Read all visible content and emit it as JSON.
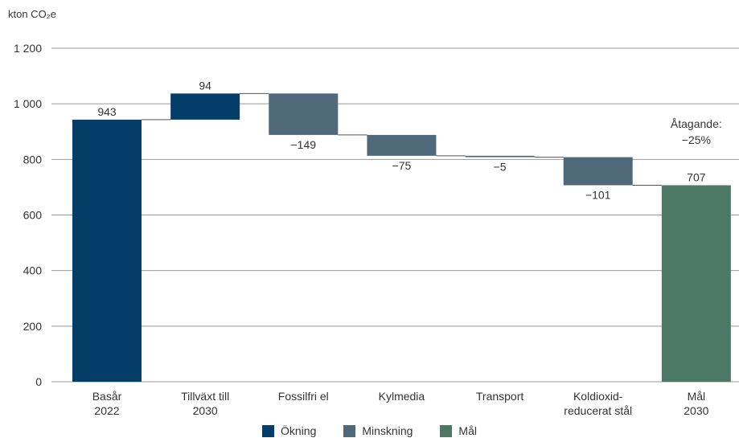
{
  "chart_data": {
    "type": "bar",
    "subtype": "waterfall",
    "unit_label": "kton CO₂e",
    "ylim": [
      0,
      1200
    ],
    "yticks": [
      0,
      200,
      400,
      600,
      800,
      1000,
      1200
    ],
    "ytick_labels": [
      "0",
      "200",
      "400",
      "600",
      "800",
      "1 000",
      "1 200"
    ],
    "grid": true,
    "categories": [
      [
        "Basår",
        "2022"
      ],
      [
        "Tillväxt till",
        "2030"
      ],
      [
        "Fossilfri el"
      ],
      [
        "Kylmedia"
      ],
      [
        "Transport"
      ],
      [
        "Koldioxid-",
        "reducerat stål"
      ],
      [
        "Mål",
        "2030"
      ]
    ],
    "bars": [
      {
        "kind": "base",
        "start": 0,
        "end": 943,
        "label": "943"
      },
      {
        "kind": "increase",
        "start": 943,
        "end": 1037,
        "label": "94"
      },
      {
        "kind": "decrease",
        "start": 1037,
        "end": 888,
        "label": "−149"
      },
      {
        "kind": "decrease",
        "start": 888,
        "end": 813,
        "label": "−75"
      },
      {
        "kind": "decrease",
        "start": 813,
        "end": 808,
        "label": "−5"
      },
      {
        "kind": "decrease",
        "start": 808,
        "end": 707,
        "label": "−101"
      },
      {
        "kind": "target",
        "start": 0,
        "end": 707,
        "label": "707"
      }
    ],
    "annotation": [
      "Åtagande:",
      "−25%"
    ],
    "legend": [
      {
        "kind": "increase",
        "label": "Ökning"
      },
      {
        "kind": "decrease",
        "label": "Minskning"
      },
      {
        "kind": "target",
        "label": "Mål"
      }
    ],
    "colors": {
      "base": "#033d68",
      "increase": "#033d68",
      "decrease": "#4f687a",
      "target": "#4e7866",
      "grid": "#999999",
      "connector": "#555555"
    }
  }
}
